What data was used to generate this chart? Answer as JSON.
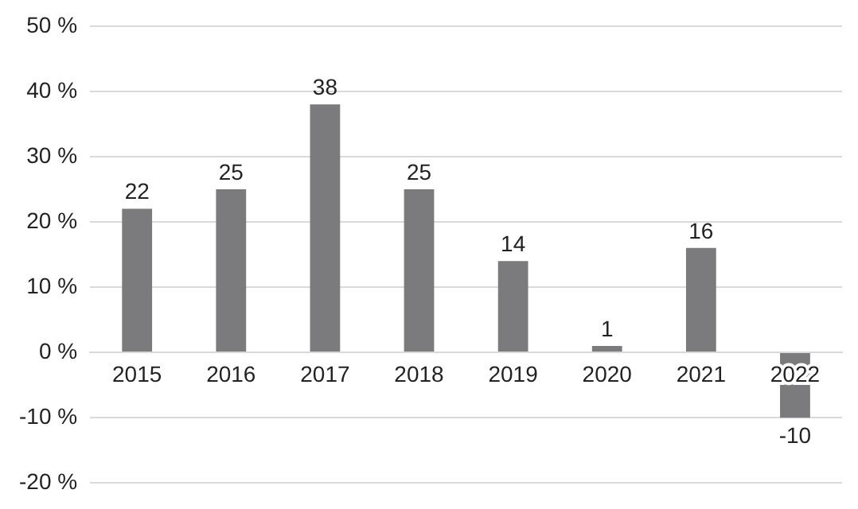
{
  "chart_data": {
    "type": "bar",
    "categories": [
      "2015",
      "2016",
      "2017",
      "2018",
      "2019",
      "2020",
      "2021",
      "2022"
    ],
    "values": [
      22,
      25,
      38,
      25,
      14,
      1,
      16,
      -10
    ],
    "color": "#7b7b7d",
    "ylim": [
      -20,
      50
    ],
    "yticks": [
      {
        "value": -20,
        "label": "-20 %"
      },
      {
        "value": -10,
        "label": "-10 %"
      },
      {
        "value": 0,
        "label": "0 %"
      },
      {
        "value": 10,
        "label": "10 %"
      },
      {
        "value": 20,
        "label": "20 %"
      },
      {
        "value": 30,
        "label": "30 %"
      },
      {
        "value": 40,
        "label": "40 %"
      },
      {
        "value": 50,
        "label": "50 %"
      }
    ],
    "grid": "y",
    "data_labels": true,
    "legend": false
  }
}
